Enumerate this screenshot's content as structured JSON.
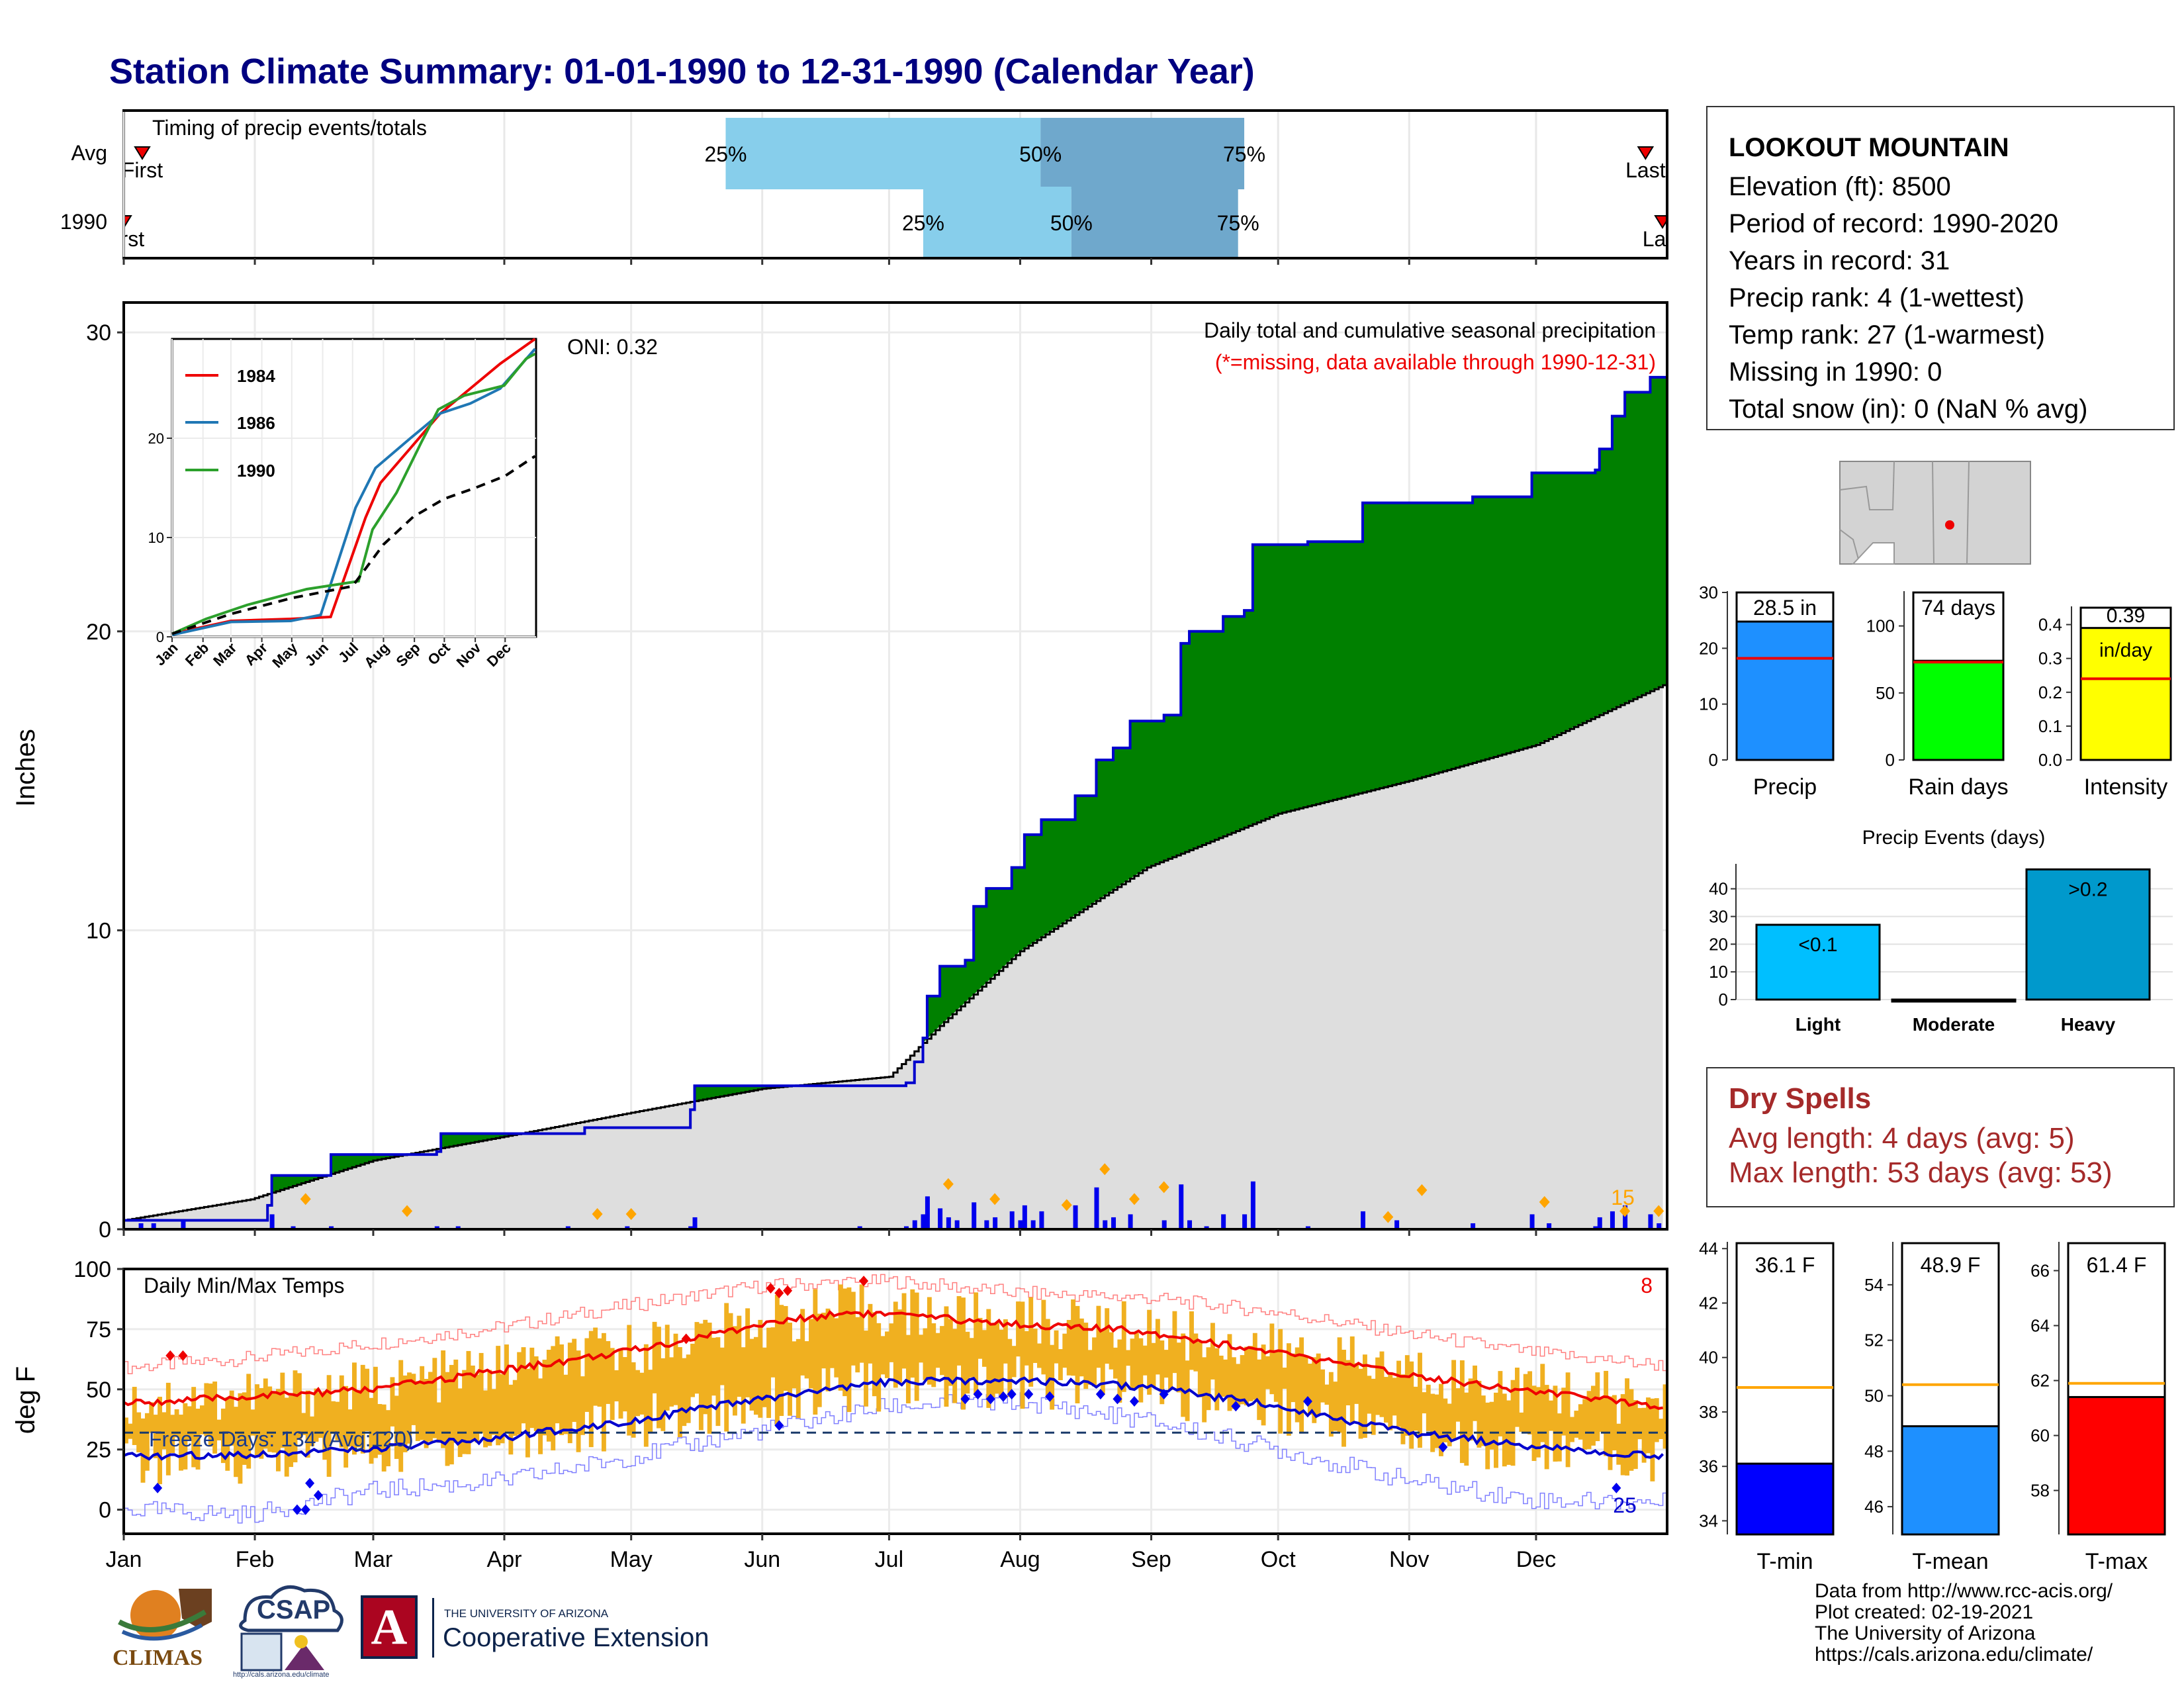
{
  "title": "Station Climate Summary: 01-01-1990 to 12-31-1990 (Calendar Year)",
  "timing": {
    "label": "Timing of precip events/totals",
    "rows": [
      {
        "name": "Avg",
        "first_label": "First",
        "last_label": "Last",
        "p25_label": "25%",
        "p50_label": "50%",
        "p75_label": "75%",
        "p25": 0.39,
        "p50": 0.594,
        "p75": 0.726,
        "first": 0.012,
        "last": 0.986
      },
      {
        "name": "1990",
        "first_label": "First",
        "last_label": "Last",
        "p25_label": "25%",
        "p50_label": "50%",
        "p75_label": "75%",
        "p25": 0.518,
        "p50": 0.614,
        "p75": 0.722,
        "first": 0.0,
        "last": 0.997
      }
    ]
  },
  "station": {
    "name": "LOOKOUT MOUNTAIN",
    "lines": [
      "Elevation (ft): 8500",
      "Period of record: 1990-2020",
      "Years in record: 31",
      "Precip rank: 4 (1-wettest)",
      "Temp rank: 27 (1-warmest)",
      "Missing in 1990: 0",
      "Total snow (in): 0 (NaN % avg)"
    ]
  },
  "colors": {
    "title": "#000080",
    "cum_fill": "#008000",
    "cum_line": "#0000cd",
    "avg_fill": "#dedede",
    "deficit": "#8b5a16",
    "daily_bar": "#0000ee",
    "temp_bar": "#f0b020",
    "tmax_line": "#ee0000",
    "tmin_line": "#0000cd",
    "marker": "#ffa500"
  },
  "chart_data": [
    {
      "type": "area",
      "name": "cumulative-precip",
      "title": "Daily total and cumulative seasonal precipitation",
      "subtitle": "(*=missing, data available through 1990-12-31)",
      "ylabel": "Inches",
      "oni_label": "ONI: 0.32",
      "annotation": "15",
      "ylim": [
        0,
        31
      ],
      "yticks": [
        0,
        10,
        20,
        30
      ],
      "x_months": [
        "Jan",
        "Feb",
        "Mar",
        "Apr",
        "May",
        "Jun",
        "Jul",
        "Aug",
        "Sep",
        "Oct",
        "Nov",
        "Dec"
      ],
      "cumulative_1990": [
        [
          1,
          0.3
        ],
        [
          35,
          0.8
        ],
        [
          36,
          1.8
        ],
        [
          49,
          1.8
        ],
        [
          50,
          2.5
        ],
        [
          75,
          2.6
        ],
        [
          76,
          3.2
        ],
        [
          110,
          3.4
        ],
        [
          135,
          4.0
        ],
        [
          136,
          4.8
        ],
        [
          186,
          4.9
        ],
        [
          188,
          5.6
        ],
        [
          190,
          6.4
        ],
        [
          191,
          7.8
        ],
        [
          194,
          8.8
        ],
        [
          200,
          9.0
        ],
        [
          202,
          10.8
        ],
        [
          205,
          11.4
        ],
        [
          211,
          12.1
        ],
        [
          214,
          13.2
        ],
        [
          218,
          13.7
        ],
        [
          225,
          13.7
        ],
        [
          226,
          14.5
        ],
        [
          231,
          15.7
        ],
        [
          235,
          16.1
        ],
        [
          239,
          17.0
        ],
        [
          247,
          17.2
        ],
        [
          251,
          19.6
        ],
        [
          253,
          20.0
        ],
        [
          261,
          20.5
        ],
        [
          266,
          20.7
        ],
        [
          268,
          22.9
        ],
        [
          281,
          23.0
        ],
        [
          294,
          24.3
        ],
        [
          320,
          24.5
        ],
        [
          334,
          25.3
        ],
        [
          349,
          25.4
        ],
        [
          350,
          26.1
        ],
        [
          353,
          27.2
        ],
        [
          356,
          28.0
        ],
        [
          362,
          28.5
        ],
        [
          365,
          28.5
        ]
      ],
      "average": [
        [
          1,
          0.3
        ],
        [
          31,
          1.0
        ],
        [
          60,
          2.3
        ],
        [
          91,
          3.1
        ],
        [
          121,
          3.9
        ],
        [
          152,
          4.7
        ],
        [
          182,
          5.1
        ],
        [
          194,
          6.8
        ],
        [
          213,
          9.3
        ],
        [
          243,
          12.1
        ],
        [
          274,
          13.9
        ],
        [
          305,
          15.0
        ],
        [
          335,
          16.2
        ],
        [
          365,
          18.2
        ]
      ],
      "daily_bars": [
        [
          5,
          0.2
        ],
        [
          8,
          0.2
        ],
        [
          15,
          0.3
        ],
        [
          36,
          0.5
        ],
        [
          41,
          0.1
        ],
        [
          50,
          0.1
        ],
        [
          75,
          0.1
        ],
        [
          80,
          0.1
        ],
        [
          106,
          0.1
        ],
        [
          120,
          0.1
        ],
        [
          135,
          0.1
        ],
        [
          136,
          0.4
        ],
        [
          175,
          0.1
        ],
        [
          186,
          0.1
        ],
        [
          188,
          0.3
        ],
        [
          190,
          0.5
        ],
        [
          191,
          1.1
        ],
        [
          194,
          0.7
        ],
        [
          196,
          0.4
        ],
        [
          198,
          0.3
        ],
        [
          202,
          0.9
        ],
        [
          205,
          0.3
        ],
        [
          207,
          0.4
        ],
        [
          211,
          0.6
        ],
        [
          213,
          0.3
        ],
        [
          214,
          0.8
        ],
        [
          216,
          0.3
        ],
        [
          218,
          0.6
        ],
        [
          226,
          0.8
        ],
        [
          231,
          1.4
        ],
        [
          233,
          0.3
        ],
        [
          235,
          0.4
        ],
        [
          239,
          0.5
        ],
        [
          247,
          0.3
        ],
        [
          251,
          1.5
        ],
        [
          253,
          0.3
        ],
        [
          257,
          0.1
        ],
        [
          261,
          0.5
        ],
        [
          266,
          0.5
        ],
        [
          268,
          1.6
        ],
        [
          281,
          0.1
        ],
        [
          294,
          0.6
        ],
        [
          302,
          0.3
        ],
        [
          320,
          0.2
        ],
        [
          334,
          0.5
        ],
        [
          338,
          0.2
        ],
        [
          349,
          0.1
        ],
        [
          350,
          0.4
        ],
        [
          353,
          0.6
        ],
        [
          356,
          0.8
        ],
        [
          362,
          0.5
        ],
        [
          364,
          0.2
        ]
      ],
      "markers": [
        [
          44,
          0.7
        ],
        [
          68,
          0.3
        ],
        [
          113,
          0.2
        ],
        [
          121,
          0.2
        ],
        [
          196,
          1.2
        ],
        [
          207,
          0.7
        ],
        [
          224,
          0.5
        ],
        [
          233,
          1.7
        ],
        [
          240,
          0.7
        ],
        [
          247,
          1.1
        ],
        [
          300,
          0.1
        ],
        [
          308,
          1.0
        ],
        [
          337,
          0.6
        ],
        [
          356,
          0.3
        ],
        [
          364,
          0.3
        ]
      ]
    },
    {
      "type": "line",
      "name": "inset-cumulative-by-year",
      "ylim": [
        0,
        30
      ],
      "yticks": [
        0,
        10,
        20
      ],
      "x_months": [
        "Jan",
        "Feb",
        "Mar",
        "Apr",
        "May",
        "Jun",
        "Jul",
        "Aug",
        "Sep",
        "Oct",
        "Nov",
        "Dec"
      ],
      "series": [
        {
          "name": "1984",
          "color": "#ee0000",
          "points": [
            [
              1,
              0.3
            ],
            [
              60,
              1.6
            ],
            [
              120,
              1.8
            ],
            [
              160,
              2.0
            ],
            [
              195,
              12.0
            ],
            [
              210,
              15.5
            ],
            [
              240,
              19.0
            ],
            [
              270,
              22.5
            ],
            [
              300,
              25.0
            ],
            [
              330,
              27.5
            ],
            [
              365,
              30.0
            ]
          ]
        },
        {
          "name": "1986",
          "color": "#1f77b4",
          "points": [
            [
              1,
              0.2
            ],
            [
              60,
              1.5
            ],
            [
              120,
              1.6
            ],
            [
              150,
              2.2
            ],
            [
              185,
              13.0
            ],
            [
              205,
              17.0
            ],
            [
              240,
              20.0
            ],
            [
              270,
              22.5
            ],
            [
              300,
              23.5
            ],
            [
              330,
              25.0
            ],
            [
              365,
              29.0
            ]
          ]
        },
        {
          "name": "1990",
          "color": "#2ca02c",
          "points": [
            [
              1,
              0.3
            ],
            [
              35,
              1.8
            ],
            [
              76,
              3.2
            ],
            [
              136,
              4.8
            ],
            [
              188,
              5.6
            ],
            [
              202,
              10.8
            ],
            [
              226,
              14.5
            ],
            [
              251,
              19.6
            ],
            [
              268,
              22.9
            ],
            [
              294,
              24.3
            ],
            [
              334,
              25.3
            ],
            [
              356,
              28.0
            ],
            [
              365,
              28.5
            ]
          ]
        },
        {
          "name": "Average",
          "color": "#000000",
          "dashed": true,
          "points": [
            [
              1,
              0.3
            ],
            [
              60,
              2.3
            ],
            [
              121,
              3.9
            ],
            [
              182,
              5.1
            ],
            [
              213,
              9.3
            ],
            [
              243,
              12.1
            ],
            [
              274,
              13.9
            ],
            [
              305,
              15.0
            ],
            [
              335,
              16.2
            ],
            [
              365,
              18.2
            ]
          ]
        }
      ]
    },
    {
      "type": "line",
      "name": "daily-temps",
      "title": "Daily Min/Max Temps",
      "ylabel": "deg F",
      "ylim": [
        -10,
        100
      ],
      "yticks": [
        0,
        25,
        50,
        75,
        100
      ],
      "x_months": [
        "Jan",
        "Feb",
        "Mar",
        "Apr",
        "May",
        "Jun",
        "Jul",
        "Aug",
        "Sep",
        "Oct",
        "Nov",
        "Dec"
      ],
      "freeze_label": "Freeze Days: 134 (Avg:120)",
      "freeze_line": 32,
      "record_high_count": "8",
      "record_low_count": "25",
      "avg_max": [
        [
          1,
          44
        ],
        [
          31,
          47
        ],
        [
          60,
          50
        ],
        [
          91,
          58
        ],
        [
          121,
          66
        ],
        [
          152,
          77
        ],
        [
          172,
          82
        ],
        [
          182,
          81
        ],
        [
          213,
          77
        ],
        [
          243,
          74
        ],
        [
          274,
          65
        ],
        [
          305,
          56
        ],
        [
          335,
          49
        ],
        [
          365,
          43
        ]
      ],
      "avg_min": [
        [
          1,
          22
        ],
        [
          31,
          23
        ],
        [
          60,
          25
        ],
        [
          91,
          30
        ],
        [
          121,
          37
        ],
        [
          152,
          46
        ],
        [
          182,
          53
        ],
        [
          213,
          54
        ],
        [
          243,
          51
        ],
        [
          274,
          43
        ],
        [
          305,
          32
        ],
        [
          335,
          26
        ],
        [
          365,
          22
        ]
      ],
      "record_max": [
        [
          1,
          59
        ],
        [
          31,
          63
        ],
        [
          60,
          69
        ],
        [
          91,
          76
        ],
        [
          121,
          85
        ],
        [
          152,
          93
        ],
        [
          182,
          95
        ],
        [
          213,
          90
        ],
        [
          243,
          88
        ],
        [
          274,
          82
        ],
        [
          305,
          73
        ],
        [
          335,
          65
        ],
        [
          365,
          60
        ]
      ],
      "record_min": [
        [
          1,
          0
        ],
        [
          31,
          -2
        ],
        [
          60,
          8
        ],
        [
          91,
          12
        ],
        [
          121,
          22
        ],
        [
          152,
          33
        ],
        [
          182,
          43
        ],
        [
          213,
          45
        ],
        [
          243,
          37
        ],
        [
          274,
          25
        ],
        [
          305,
          12
        ],
        [
          335,
          4
        ],
        [
          365,
          3
        ]
      ]
    },
    {
      "type": "bar",
      "name": "precip-total",
      "categories": [
        "Precip"
      ],
      "values": [
        28.5
      ],
      "average": 18.2,
      "value_label": "28.5 in",
      "ylim": [
        0,
        30
      ],
      "yticks": [
        0,
        10,
        20,
        30
      ],
      "color": "#1e90ff"
    },
    {
      "type": "bar",
      "name": "rain-days",
      "categories": [
        "Rain days"
      ],
      "values": [
        74
      ],
      "average": 73,
      "value_label": "74 days",
      "ylim": [
        0,
        125
      ],
      "yticks": [
        0,
        50,
        100
      ],
      "color": "#00ff00"
    },
    {
      "type": "bar",
      "name": "intensity",
      "categories": [
        "Intensity"
      ],
      "values": [
        0.39
      ],
      "average": 0.24,
      "value_label": "0.39",
      "unit_label": "in/day",
      "ylim": [
        0,
        0.45
      ],
      "yticks": [
        "0.0",
        "0.1",
        "0.2",
        "0.3",
        "0.4"
      ],
      "color": "#ffff00"
    },
    {
      "type": "bar",
      "name": "precip-events",
      "title": "Precip Events (days)",
      "categories": [
        "Light",
        "Moderate",
        "Heavy"
      ],
      "values": [
        27,
        0,
        47
      ],
      "bar_labels": [
        "<0.1",
        "",
        ">0.2"
      ],
      "ylim": [
        0,
        49
      ],
      "yticks": [
        0,
        10,
        20,
        30,
        40
      ],
      "colors": [
        "#00bfff",
        "#00bfff",
        "#0099cc"
      ]
    },
    {
      "type": "bar",
      "name": "t-min",
      "categories": [
        "T-min"
      ],
      "values": [
        36.1
      ],
      "average": 38.9,
      "value_label": "36.1 F",
      "ylim": [
        33.5,
        44.2
      ],
      "yticks": [
        34,
        36,
        38,
        40,
        42,
        44
      ],
      "color": "#0000ff"
    },
    {
      "type": "bar",
      "name": "t-mean",
      "categories": [
        "T-mean"
      ],
      "values": [
        48.9
      ],
      "average": 50.4,
      "value_label": "48.9 F",
      "ylim": [
        45.0,
        55.5
      ],
      "yticks": [
        46,
        48,
        50,
        52,
        54
      ],
      "color": "#1e90ff"
    },
    {
      "type": "bar",
      "name": "t-max",
      "categories": [
        "T-max"
      ],
      "values": [
        61.4
      ],
      "average": 61.9,
      "value_label": "61.4 F",
      "ylim": [
        56.4,
        67.0
      ],
      "yticks": [
        58,
        60,
        62,
        64,
        66
      ],
      "color": "#ff0000"
    }
  ],
  "dry_spells": {
    "title": "Dry Spells",
    "avg_line": "Avg length: 4 days (avg: 5)",
    "max_line": "Max length: 53 days (avg: 53)"
  },
  "footer": [
    "Data from http://www.rcc-acis.org/",
    "Plot created: 02-19-2021",
    "The University of Arizona",
    "https://cals.arizona.edu/climate/"
  ],
  "logos": {
    "climas": "CLIMAS",
    "csap": "CSAP",
    "csap_url": "http://cals.arizona.edu/climate",
    "ua_line1": "THE UNIVERSITY OF ARIZONA",
    "ua_line2": "Cooperative Extension",
    "ua_mark": "A"
  }
}
